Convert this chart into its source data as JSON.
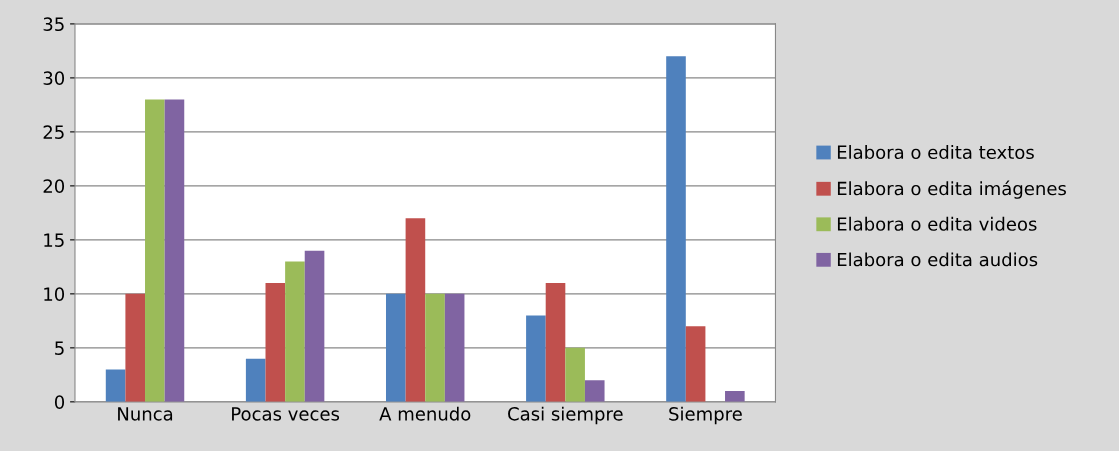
{
  "chart_data": {
    "type": "bar",
    "categories": [
      "Nunca",
      "Pocas veces",
      "A menudo",
      "Casi siempre",
      "Siempre"
    ],
    "series": [
      {
        "name": "Elabora o edita textos",
        "color": "#4f81bd",
        "values": [
          3,
          4,
          10,
          8,
          32
        ]
      },
      {
        "name": "Elabora o edita imágenes",
        "color": "#c0504d",
        "values": [
          10,
          11,
          17,
          11,
          7
        ]
      },
      {
        "name": "Elabora o edita videos",
        "color": "#9bbb59",
        "values": [
          28,
          13,
          10,
          5,
          0
        ]
      },
      {
        "name": "Elabora o edita audios",
        "color": "#8064a2",
        "values": [
          28,
          14,
          10,
          2,
          1
        ]
      }
    ],
    "ylim": [
      0,
      35
    ],
    "yticks": [
      0,
      5,
      10,
      15,
      20,
      25,
      30,
      35
    ],
    "grid": "y",
    "legend": "right"
  }
}
